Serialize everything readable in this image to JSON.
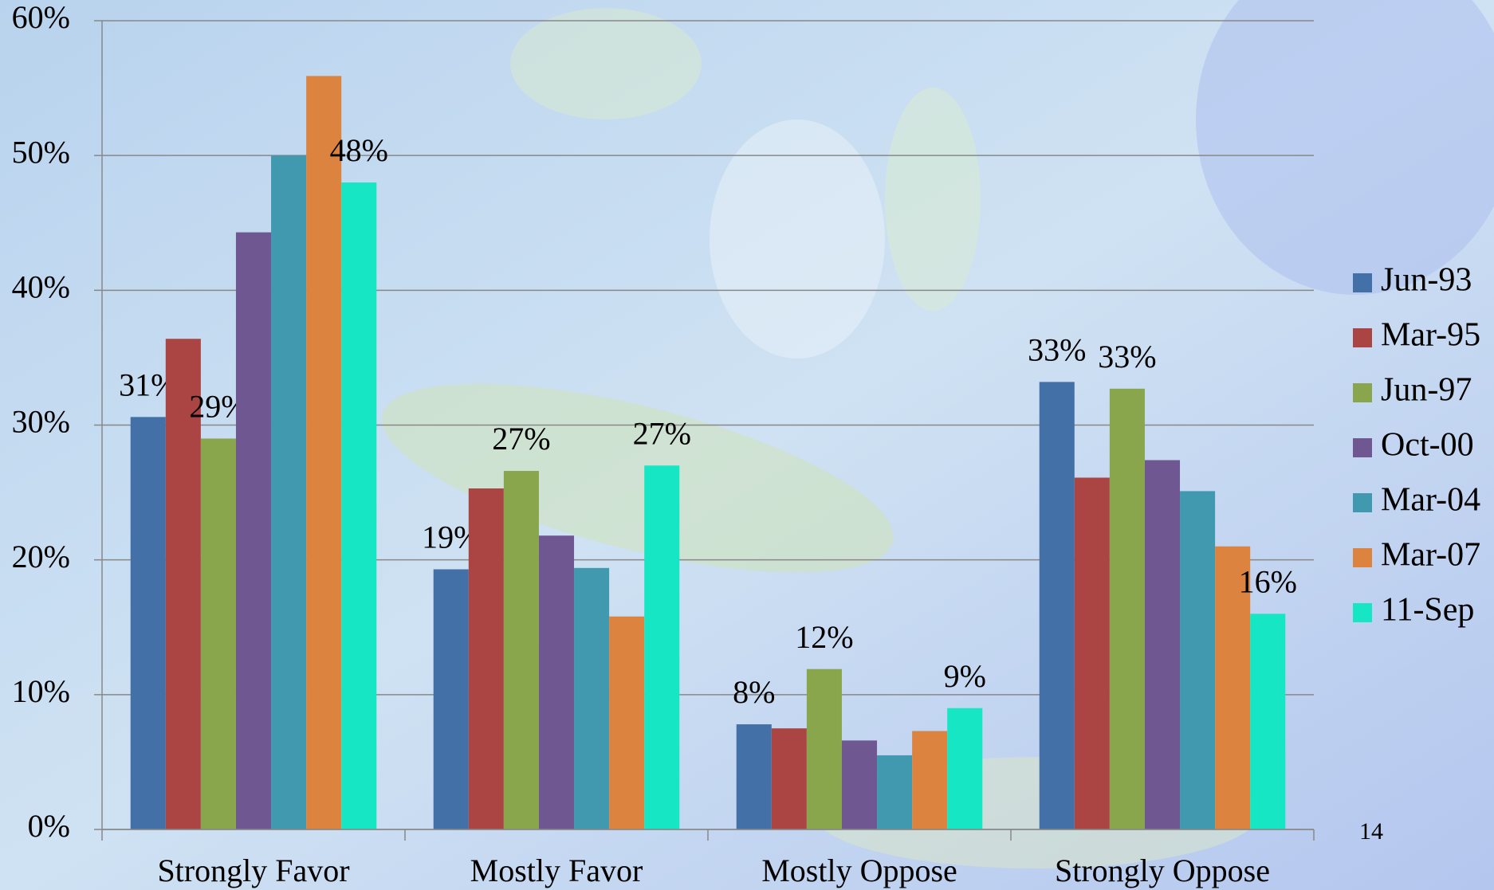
{
  "chart_data": {
    "type": "bar",
    "categories": [
      "Strongly Favor",
      "Mostly Favor",
      "Mostly Oppose",
      "Strongly Oppose"
    ],
    "series": [
      {
        "name": "Jun-93",
        "color": "#4470a8",
        "values": [
          30.6,
          19.3,
          7.8,
          33.2
        ],
        "value_labels": [
          "31%",
          "19%",
          "8%",
          "33%"
        ]
      },
      {
        "name": "Mar-95",
        "color": "#ab4543",
        "values": [
          36.4,
          25.3,
          7.5,
          26.1
        ]
      },
      {
        "name": "Jun-97",
        "color": "#8aa64d",
        "values": [
          29.0,
          26.6,
          11.9,
          32.7
        ],
        "value_labels": [
          "29%",
          "27%",
          "12%",
          "33%"
        ]
      },
      {
        "name": "Oct-00",
        "color": "#6f5791",
        "values": [
          44.3,
          21.8,
          6.6,
          27.4
        ]
      },
      {
        "name": "Mar-04",
        "color": "#4099af",
        "values": [
          50.0,
          19.4,
          5.5,
          25.1
        ]
      },
      {
        "name": "Mar-07",
        "color": "#dc843f",
        "values": [
          55.9,
          15.8,
          7.3,
          21.0
        ]
      },
      {
        "name": "11-Sep",
        "color": "#17e6c4",
        "values": [
          48.0,
          27.0,
          9.0,
          16.0
        ],
        "value_labels": [
          "48%",
          "27%",
          "9%",
          "16%"
        ]
      }
    ],
    "ylim": [
      0,
      60
    ],
    "yticks": [
      {
        "value": 0,
        "label": "0%"
      },
      {
        "value": 10,
        "label": "10%"
      },
      {
        "value": 20,
        "label": "20%"
      },
      {
        "value": 30,
        "label": "30%"
      },
      {
        "value": 40,
        "label": "40%"
      },
      {
        "value": 50,
        "label": "50%"
      },
      {
        "value": 60,
        "label": "60%"
      }
    ],
    "grid": true,
    "legend": "right"
  },
  "page_number": "14"
}
